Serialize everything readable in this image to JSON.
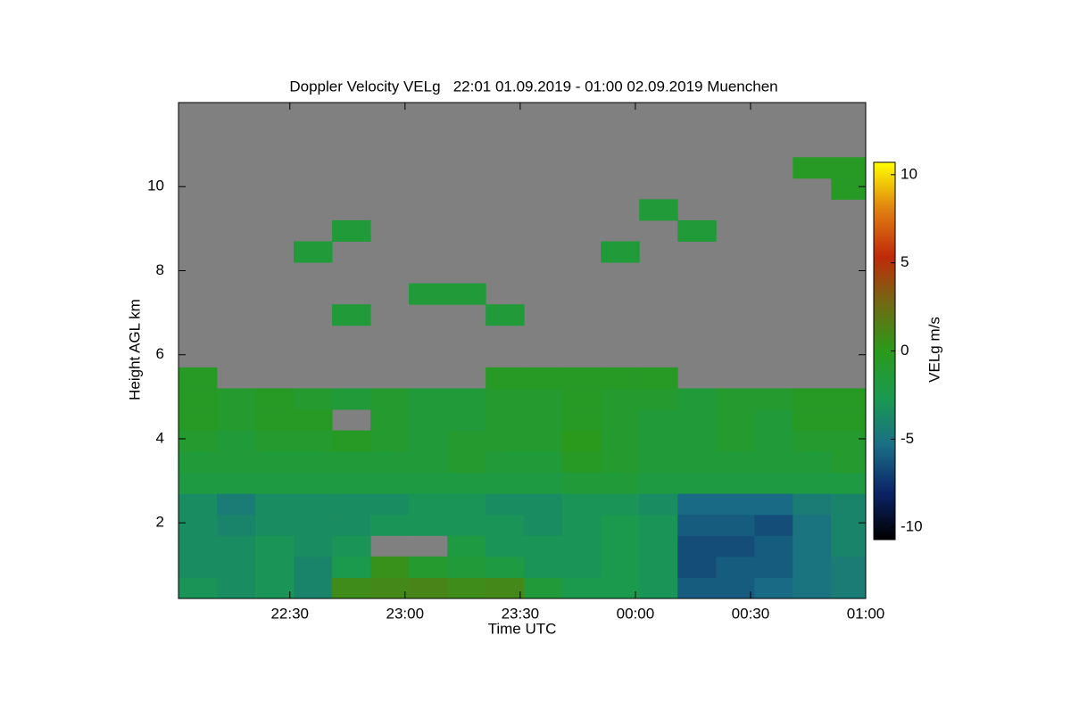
{
  "chart_data": {
    "type": "heatmap",
    "title": "Doppler Velocity VELg   22:01 01.09.2019 - 01:00 02.09.2019 Muenchen",
    "x_label": "Time UTC",
    "y_label": "Height AGL km",
    "colorbar_label": "VELg m/s",
    "xlim": [
      1,
      180
    ],
    "xticks": [
      {
        "value": 30,
        "label": "22:30"
      },
      {
        "value": 60,
        "label": "23:00"
      },
      {
        "value": 90,
        "label": "23:30"
      },
      {
        "value": 120,
        "label": "00:00"
      },
      {
        "value": 150,
        "label": "00:30"
      },
      {
        "value": 180,
        "label": "01:00"
      }
    ],
    "ylim": [
      0.2,
      12
    ],
    "yticks": [
      2,
      4,
      6,
      8,
      10
    ],
    "clim": [
      -10.7,
      10.7
    ],
    "cticks": [
      -10,
      -5,
      0,
      5,
      10
    ],
    "colormap": [
      "#000000",
      "#0b2466",
      "#1a6e86",
      "#1a9a50",
      "#2a9a1c",
      "#706a14",
      "#c02a0a",
      "#e08010",
      "#ffff00"
    ],
    "no_data_color": "#808080",
    "x": [
      6,
      16,
      26,
      36,
      46,
      56,
      66,
      76,
      86,
      96,
      106,
      116,
      126,
      136,
      146,
      156,
      166,
      176
    ],
    "y": [
      0.45,
      0.95,
      1.45,
      1.95,
      2.45,
      2.95,
      3.45,
      3.95,
      4.45,
      4.95,
      5.45,
      5.95,
      6.45,
      6.95,
      7.45,
      7.95,
      8.45,
      8.95,
      9.45,
      9.95,
      10.45,
      10.95,
      11.45,
      11.95
    ],
    "z": [
      [
        -3,
        -3.5,
        -3,
        -4,
        0.8,
        1,
        1.2,
        0.8,
        1,
        -1.5,
        -2.5,
        -2.5,
        -3,
        -6,
        -6,
        -5.5,
        -5,
        -4.5
      ],
      [
        -3.5,
        -3.5,
        -3,
        -4,
        -2.5,
        0.5,
        -1,
        -1.5,
        -2,
        -3,
        -3,
        -2.5,
        -3,
        -6.5,
        -6,
        -6,
        -5,
        -4.5
      ],
      [
        -3.5,
        -3.5,
        -3,
        -3.5,
        -3,
        null,
        null,
        -2,
        -3,
        -3,
        -3,
        -2.5,
        -3,
        -6.5,
        -6.5,
        -6,
        -5,
        -4
      ],
      [
        -3.5,
        -4,
        -3.5,
        -3.5,
        -3.5,
        -3,
        -3,
        -3,
        -3,
        -3.5,
        -3,
        -2.5,
        -3,
        -6,
        -6,
        -6.5,
        -5,
        -4
      ],
      [
        -3.5,
        -4.5,
        -3.5,
        -3.5,
        -3.5,
        -3.5,
        -3,
        -3,
        -3.5,
        -3.5,
        -3,
        -3,
        -3.5,
        -5.5,
        -5.5,
        -5.5,
        -4.5,
        -4
      ],
      [
        -2,
        -2,
        -2,
        -2,
        -2,
        -2,
        -2,
        -2,
        -2,
        -2,
        -1.5,
        -1.5,
        -2,
        -2,
        -2,
        -2,
        -2,
        -2
      ],
      [
        -1.5,
        -1.5,
        -1.5,
        -1.5,
        -1.5,
        -1.5,
        -1.5,
        -1,
        -1.5,
        -1.5,
        -0.5,
        -1,
        -1.5,
        -1.5,
        -1.5,
        -1.5,
        -1.5,
        -1
      ],
      [
        -1,
        -1.5,
        -1,
        -1,
        -0.5,
        -1,
        -1.5,
        -1,
        -1,
        -1,
        0,
        -1,
        -1.5,
        -1.5,
        -1,
        -1.5,
        -1,
        -1
      ],
      [
        -0.5,
        -1,
        -0.5,
        -0.5,
        null,
        -1,
        -1.5,
        -1.5,
        -1,
        -1,
        -0.5,
        -1,
        -1.5,
        -1.5,
        -1,
        -1.5,
        -0.5,
        -0.5
      ],
      [
        -0.5,
        -1,
        -0.5,
        -1,
        -1.5,
        -1,
        -1.5,
        -1.5,
        -1,
        -1,
        -0.5,
        -1,
        -1,
        -1.5,
        -1,
        -1,
        -0.5,
        -0.5
      ],
      [
        -0.5,
        null,
        null,
        null,
        null,
        null,
        null,
        null,
        -0.5,
        -0.5,
        -0.5,
        -0.5,
        -0.5,
        null,
        null,
        null,
        null,
        null
      ],
      [
        null,
        null,
        null,
        null,
        null,
        null,
        null,
        null,
        null,
        null,
        null,
        null,
        null,
        null,
        null,
        null,
        null,
        null
      ],
      [
        null,
        null,
        null,
        null,
        null,
        null,
        null,
        null,
        null,
        null,
        null,
        null,
        null,
        null,
        null,
        null,
        null,
        null
      ],
      [
        null,
        null,
        null,
        null,
        -1.5,
        null,
        null,
        null,
        -1.5,
        null,
        null,
        null,
        null,
        null,
        null,
        null,
        null,
        null
      ],
      [
        null,
        null,
        null,
        null,
        null,
        null,
        -1.5,
        -1.5,
        null,
        null,
        null,
        null,
        null,
        null,
        null,
        null,
        null,
        null
      ],
      [
        null,
        null,
        null,
        null,
        null,
        null,
        null,
        null,
        null,
        null,
        null,
        null,
        null,
        null,
        null,
        null,
        null,
        null
      ],
      [
        null,
        null,
        null,
        -1.5,
        null,
        null,
        null,
        null,
        null,
        null,
        null,
        -1.5,
        null,
        null,
        null,
        null,
        null,
        null
      ],
      [
        null,
        null,
        null,
        null,
        -1.5,
        null,
        null,
        null,
        null,
        null,
        null,
        null,
        null,
        -1.5,
        null,
        null,
        null,
        null
      ],
      [
        null,
        null,
        null,
        null,
        null,
        null,
        null,
        null,
        null,
        null,
        null,
        null,
        -1.5,
        null,
        null,
        null,
        null,
        null
      ],
      [
        null,
        null,
        null,
        null,
        null,
        null,
        null,
        null,
        null,
        null,
        null,
        null,
        null,
        null,
        null,
        null,
        null,
        -0.5
      ],
      [
        null,
        null,
        null,
        null,
        null,
        null,
        null,
        null,
        null,
        null,
        null,
        null,
        null,
        null,
        null,
        null,
        -0.5,
        -0.5
      ],
      [
        null,
        null,
        null,
        null,
        null,
        null,
        null,
        null,
        null,
        null,
        null,
        null,
        null,
        null,
        null,
        null,
        null,
        null
      ],
      [
        null,
        null,
        null,
        null,
        null,
        null,
        null,
        null,
        null,
        null,
        null,
        null,
        null,
        null,
        null,
        null,
        null,
        null
      ],
      [
        null,
        null,
        null,
        null,
        null,
        null,
        null,
        null,
        null,
        null,
        null,
        null,
        null,
        null,
        null,
        null,
        null,
        null
      ]
    ]
  }
}
